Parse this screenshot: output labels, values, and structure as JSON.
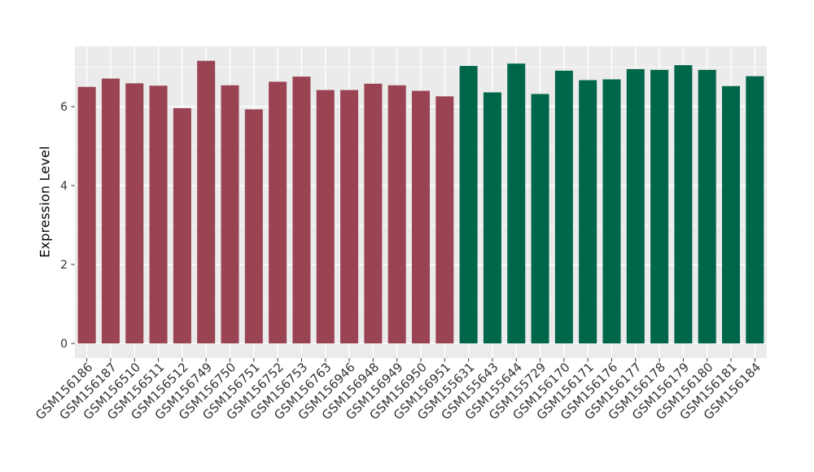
{
  "figure": {
    "background": "#FFFFFF",
    "panel_background": "#EBEBEB",
    "gridline_color": "#FFFFFF",
    "axis_text_color": "#333333",
    "axis_title_color": "#000000",
    "tick_mark_color": "#333333"
  },
  "chart_data": {
    "type": "bar",
    "title": "",
    "xlabel": "",
    "ylabel": "Expression Level",
    "ylim": [
      0,
      7.52
    ],
    "yticks": [
      0,
      2,
      4,
      6
    ],
    "minor_gridlines": [
      1,
      3,
      5,
      7
    ],
    "grid": true,
    "legend_position": "none",
    "x_label_angle": 45,
    "categories": [
      "GSM156186",
      "GSM156187",
      "GSM156510",
      "GSM156511",
      "GSM156512",
      "GSM156749",
      "GSM156750",
      "GSM156751",
      "GSM156752",
      "GSM156753",
      "GSM156763",
      "GSM156946",
      "GSM156948",
      "GSM156949",
      "GSM156950",
      "GSM156951",
      "GSM155631",
      "GSM155643",
      "GSM155644",
      "GSM155729",
      "GSM156170",
      "GSM156171",
      "GSM156176",
      "GSM156177",
      "GSM156178",
      "GSM156179",
      "GSM156180",
      "GSM156181",
      "GSM156184"
    ],
    "values": [
      6.5,
      6.71,
      6.59,
      6.53,
      5.96,
      7.16,
      6.54,
      5.93,
      6.63,
      6.76,
      6.42,
      6.42,
      6.58,
      6.54,
      6.4,
      6.26,
      7.03,
      6.36,
      7.09,
      6.32,
      6.91,
      6.67,
      6.69,
      6.95,
      6.93,
      7.05,
      6.93,
      6.52,
      6.77
    ],
    "groups": [
      "group1",
      "group1",
      "group1",
      "group1",
      "group1",
      "group1",
      "group1",
      "group1",
      "group1",
      "group1",
      "group1",
      "group1",
      "group1",
      "group1",
      "group1",
      "group1",
      "group2",
      "group2",
      "group2",
      "group2",
      "group2",
      "group2",
      "group2",
      "group2",
      "group2",
      "group2",
      "group2",
      "group2",
      "group2"
    ],
    "group_colors": {
      "group1": "#9A4352",
      "group2": "#00664A"
    }
  }
}
